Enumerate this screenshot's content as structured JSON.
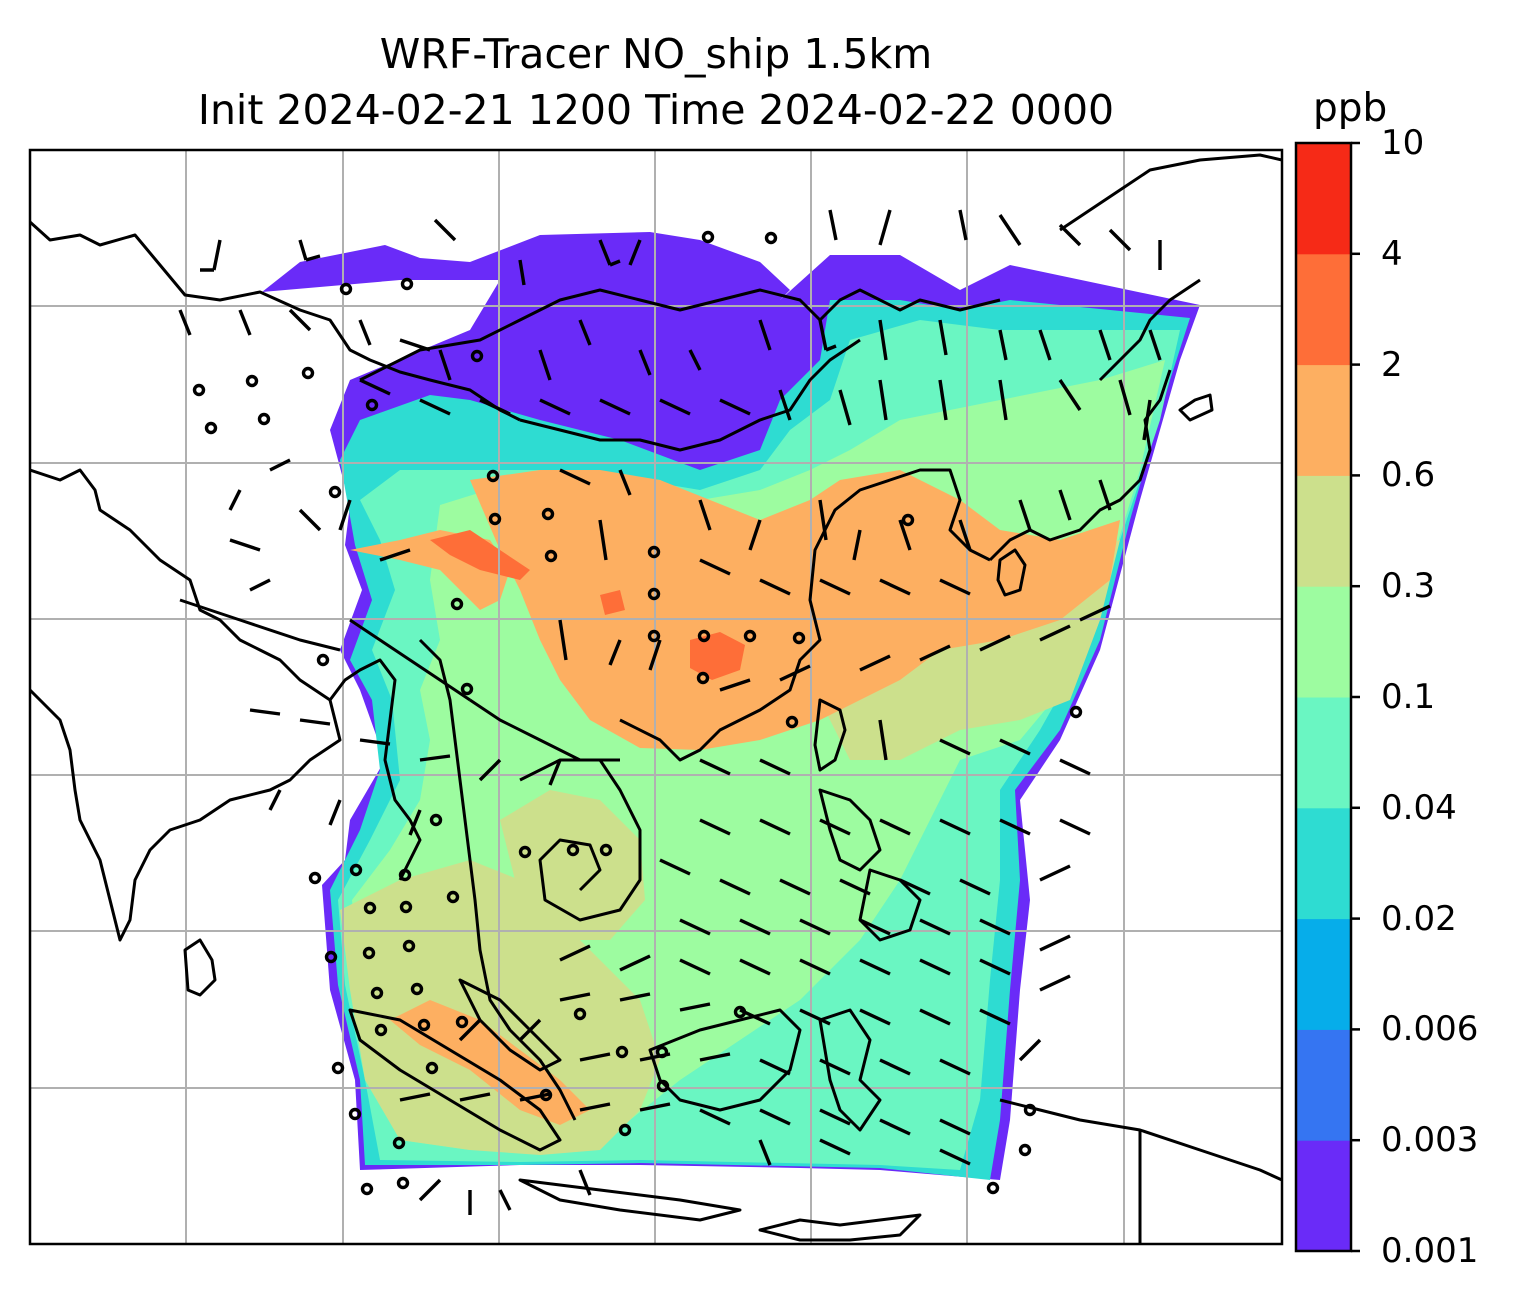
{
  "title": {
    "line1": "WRF-Tracer NO_ship 1.5km",
    "line2": "Init 2024-02-21 1200 Time 2024-02-22 0000"
  },
  "colorbar": {
    "units": "ppb",
    "tick_labels": [
      "0.001",
      "0.003",
      "0.006",
      "0.02",
      "0.04",
      "0.1",
      "0.3",
      "0.6",
      "2",
      "4",
      "10"
    ],
    "colors": [
      "#6a2bf8",
      "#3575f2",
      "#06adea",
      "#2edcd2",
      "#6af6c2",
      "#9dfca0",
      "#cce08c",
      "#fdaf61",
      "#fe6e38",
      "#f62a17"
    ]
  },
  "map": {
    "gridlines": true,
    "gridline_color": "#b0b0b0",
    "coastline_color": "#000000",
    "features": [
      "coastlines",
      "country-borders",
      "wind-barbs",
      "calm-circles",
      "no-ship-concentration-field"
    ]
  }
}
